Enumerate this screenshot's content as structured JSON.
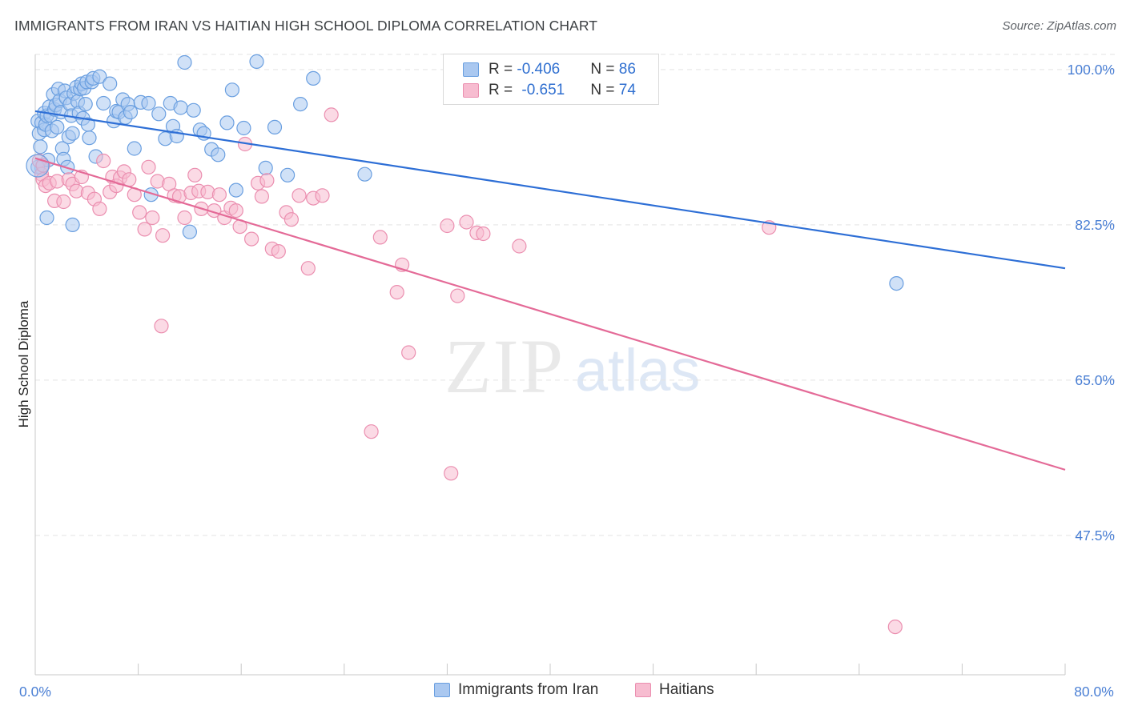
{
  "title": "IMMIGRANTS FROM IRAN VS HAITIAN HIGH SCHOOL DIPLOMA CORRELATION CHART",
  "source": "Source: ZipAtlas.com",
  "watermark": {
    "zip": "ZIP",
    "atlas": "atlas"
  },
  "colors": {
    "blue_fill": "#aac8f0",
    "blue_stroke": "#6a9fe0",
    "blue_line": "#2e6fd6",
    "pink_fill": "#f7bcd0",
    "pink_stroke": "#eb8fb0",
    "pink_line": "#e46a97",
    "tick_text": "#4a7fd4",
    "grid": "#e3e3e3"
  },
  "legend": {
    "r_label": "R = ",
    "n_label": "N = ",
    "series": [
      {
        "r": "-0.406",
        "n": "86"
      },
      {
        "r": "-0.651",
        "n": "74"
      }
    ]
  },
  "bottom_legend": [
    "Immigrants from Iran",
    "Haitians"
  ],
  "chart_data": {
    "type": "scatter",
    "title": "IMMIGRANTS FROM IRAN VS HAITIAN HIGH SCHOOL DIPLOMA CORRELATION CHART",
    "xlabel": "",
    "ylabel": "High School Diploma",
    "x_tick_labels": [
      "0.0%",
      "80.0%"
    ],
    "y_tick_labels": [
      "100.0%",
      "82.5%",
      "65.0%",
      "47.5%"
    ],
    "y_ticks": [
      100.0,
      82.5,
      65.0,
      47.5
    ],
    "xlim": [
      0,
      80
    ],
    "ylim": [
      31.8,
      101.7
    ],
    "grid": true,
    "legend_position": "top-center",
    "series": [
      {
        "name": "Immigrants from Iran",
        "trend": {
          "x": [
            0,
            80
          ],
          "y": [
            95.3,
            77.6
          ]
        },
        "points": [
          [
            0.2,
            94.2
          ],
          [
            0.3,
            92.8
          ],
          [
            0.4,
            91.3
          ],
          [
            0.5,
            88.9
          ],
          [
            0.5,
            94.0
          ],
          [
            0.7,
            93.2
          ],
          [
            0.7,
            95.1
          ],
          [
            0.8,
            93.8
          ],
          [
            0.9,
            94.8
          ],
          [
            1.0,
            89.8
          ],
          [
            1.1,
            95.8
          ],
          [
            1.2,
            94.8
          ],
          [
            1.3,
            93.1
          ],
          [
            1.4,
            97.2
          ],
          [
            1.5,
            95.5
          ],
          [
            1.6,
            96.0
          ],
          [
            1.7,
            93.5
          ],
          [
            1.8,
            97.8
          ],
          [
            1.9,
            96.5
          ],
          [
            2.0,
            95.2
          ],
          [
            2.1,
            91.1
          ],
          [
            2.2,
            89.9
          ],
          [
            2.3,
            97.6
          ],
          [
            2.4,
            96.8
          ],
          [
            2.5,
            89.0
          ],
          [
            2.6,
            92.4
          ],
          [
            2.7,
            96.1
          ],
          [
            2.8,
            94.8
          ],
          [
            2.9,
            92.8
          ],
          [
            3.0,
            97.3
          ],
          [
            3.2,
            98.0
          ],
          [
            3.3,
            96.4
          ],
          [
            3.4,
            95.1
          ],
          [
            3.5,
            97.8
          ],
          [
            3.6,
            98.4
          ],
          [
            3.7,
            94.5
          ],
          [
            3.8,
            97.9
          ],
          [
            3.9,
            96.1
          ],
          [
            4.0,
            98.6
          ],
          [
            4.1,
            93.8
          ],
          [
            4.2,
            92.3
          ],
          [
            4.4,
            98.6
          ],
          [
            4.5,
            99.0
          ],
          [
            4.7,
            90.2
          ],
          [
            5.0,
            99.2
          ],
          [
            5.3,
            96.2
          ],
          [
            5.8,
            98.4
          ],
          [
            6.1,
            94.2
          ],
          [
            6.3,
            95.3
          ],
          [
            6.5,
            95.2
          ],
          [
            6.8,
            96.6
          ],
          [
            7.0,
            94.6
          ],
          [
            7.2,
            96.1
          ],
          [
            7.4,
            95.2
          ],
          [
            7.7,
            91.1
          ],
          [
            8.2,
            96.3
          ],
          [
            8.8,
            96.2
          ],
          [
            9.0,
            85.9
          ],
          [
            9.6,
            95.0
          ],
          [
            10.1,
            92.2
          ],
          [
            10.5,
            96.2
          ],
          [
            10.7,
            93.6
          ],
          [
            11.0,
            92.5
          ],
          [
            11.3,
            95.7
          ],
          [
            11.6,
            100.8
          ],
          [
            12.0,
            81.7
          ],
          [
            12.3,
            95.4
          ],
          [
            12.8,
            93.2
          ],
          [
            13.1,
            92.8
          ],
          [
            13.7,
            91.0
          ],
          [
            14.2,
            90.4
          ],
          [
            14.9,
            94.0
          ],
          [
            15.3,
            97.7
          ],
          [
            15.6,
            86.4
          ],
          [
            16.2,
            93.4
          ],
          [
            17.2,
            100.9
          ],
          [
            17.9,
            88.9
          ],
          [
            18.6,
            93.5
          ],
          [
            19.6,
            88.1
          ],
          [
            20.6,
            96.1
          ],
          [
            21.6,
            99.0
          ],
          [
            25.6,
            88.2
          ],
          [
            0.9,
            83.3
          ],
          [
            2.9,
            82.5
          ],
          [
            66.9,
            75.9
          ],
          [
            0.2,
            89.0
          ]
        ]
      },
      {
        "name": "Haitians",
        "trend": {
          "x": [
            0,
            80
          ],
          "y": [
            90.0,
            54.9
          ]
        },
        "points": [
          [
            0.3,
            89.7
          ],
          [
            0.5,
            88.2
          ],
          [
            0.6,
            87.6
          ],
          [
            0.8,
            86.9
          ],
          [
            1.1,
            87.2
          ],
          [
            1.5,
            85.2
          ],
          [
            1.7,
            87.4
          ],
          [
            2.2,
            85.1
          ],
          [
            2.6,
            87.6
          ],
          [
            2.9,
            87.1
          ],
          [
            3.2,
            86.3
          ],
          [
            3.6,
            87.9
          ],
          [
            4.1,
            86.1
          ],
          [
            4.6,
            85.4
          ],
          [
            5.0,
            84.3
          ],
          [
            5.3,
            89.7
          ],
          [
            5.8,
            86.2
          ],
          [
            6.0,
            87.9
          ],
          [
            6.3,
            86.9
          ],
          [
            6.6,
            87.8
          ],
          [
            6.9,
            88.5
          ],
          [
            7.3,
            87.6
          ],
          [
            7.7,
            85.9
          ],
          [
            8.1,
            83.9
          ],
          [
            8.5,
            82.0
          ],
          [
            8.8,
            89.0
          ],
          [
            9.1,
            83.3
          ],
          [
            9.5,
            87.4
          ],
          [
            9.9,
            81.3
          ],
          [
            10.4,
            87.1
          ],
          [
            10.8,
            85.8
          ],
          [
            11.2,
            85.7
          ],
          [
            11.6,
            83.3
          ],
          [
            12.1,
            86.1
          ],
          [
            12.4,
            88.1
          ],
          [
            12.7,
            86.3
          ],
          [
            12.9,
            84.3
          ],
          [
            13.4,
            86.2
          ],
          [
            13.9,
            84.1
          ],
          [
            14.3,
            85.9
          ],
          [
            14.7,
            83.3
          ],
          [
            15.2,
            84.4
          ],
          [
            15.6,
            84.1
          ],
          [
            15.9,
            82.3
          ],
          [
            16.3,
            91.6
          ],
          [
            16.8,
            80.9
          ],
          [
            17.3,
            87.2
          ],
          [
            17.6,
            85.7
          ],
          [
            18.0,
            87.5
          ],
          [
            18.4,
            79.8
          ],
          [
            18.9,
            79.5
          ],
          [
            19.5,
            83.9
          ],
          [
            19.9,
            83.1
          ],
          [
            20.5,
            85.8
          ],
          [
            21.2,
            77.6
          ],
          [
            21.6,
            85.5
          ],
          [
            22.3,
            85.8
          ],
          [
            23.0,
            94.9
          ],
          [
            26.8,
            81.1
          ],
          [
            28.1,
            74.9
          ],
          [
            28.5,
            78.0
          ],
          [
            29.0,
            68.1
          ],
          [
            32.0,
            82.4
          ],
          [
            32.8,
            74.5
          ],
          [
            33.5,
            82.8
          ],
          [
            34.3,
            81.6
          ],
          [
            34.8,
            81.5
          ],
          [
            37.6,
            80.1
          ],
          [
            26.1,
            59.2
          ],
          [
            32.3,
            54.5
          ],
          [
            66.8,
            37.2
          ],
          [
            57.0,
            82.2
          ],
          [
            9.8,
            71.1
          ],
          [
            0.6,
            89.2
          ]
        ]
      }
    ]
  }
}
